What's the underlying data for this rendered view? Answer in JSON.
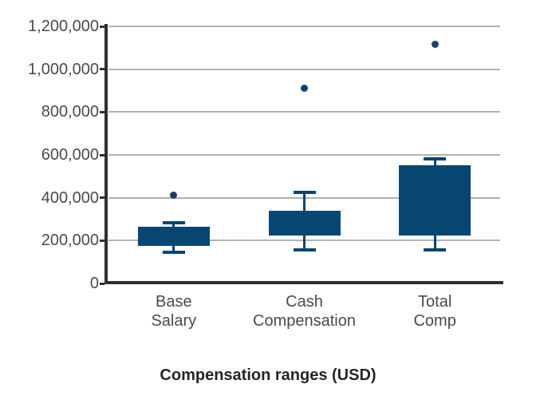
{
  "colors": {
    "background": "#ffffff",
    "box_fill": "#084672",
    "outlier_dot": "#14416b",
    "gridline": "#b1b1b1",
    "axis": "#2f2f2f",
    "tick_label": "#4a4a4a",
    "title": "#262626"
  },
  "chart_data": {
    "type": "boxplot",
    "title": "Compensation ranges (USD)",
    "grid": true,
    "legend": false,
    "median_visible": false,
    "categories": [
      "Base Salary",
      "Cash Compensation",
      "Total Comp"
    ],
    "categories_wrapped": [
      [
        "Base",
        "Salary"
      ],
      [
        "Cash",
        "Compensation"
      ],
      [
        "Total",
        "Comp"
      ]
    ],
    "y_axis": {
      "min": 0,
      "max": 1200000,
      "tick_step": 200000,
      "ticks": [
        {
          "value": 0,
          "label": "0"
        },
        {
          "value": 200000,
          "label": "200,000"
        },
        {
          "value": 400000,
          "label": "400,000"
        },
        {
          "value": 600000,
          "label": "600,000"
        },
        {
          "value": 800000,
          "label": "800,000"
        },
        {
          "value": 1000000,
          "label": "1,000,000"
        },
        {
          "value": 1200000,
          "label": "1,200,000"
        }
      ]
    },
    "series": [
      {
        "category": "Base Salary",
        "whisker_low": 145000,
        "q1": 175000,
        "q3": 265000,
        "whisker_high": 285000,
        "outliers": [
          410000
        ]
      },
      {
        "category": "Cash Compensation",
        "whisker_low": 155000,
        "q1": 225000,
        "q3": 340000,
        "whisker_high": 425000,
        "outliers": [
          910000
        ]
      },
      {
        "category": "Total Comp",
        "whisker_low": 155000,
        "q1": 225000,
        "q3": 550000,
        "whisker_high": 580000,
        "outliers": [
          1115000
        ]
      }
    ]
  }
}
